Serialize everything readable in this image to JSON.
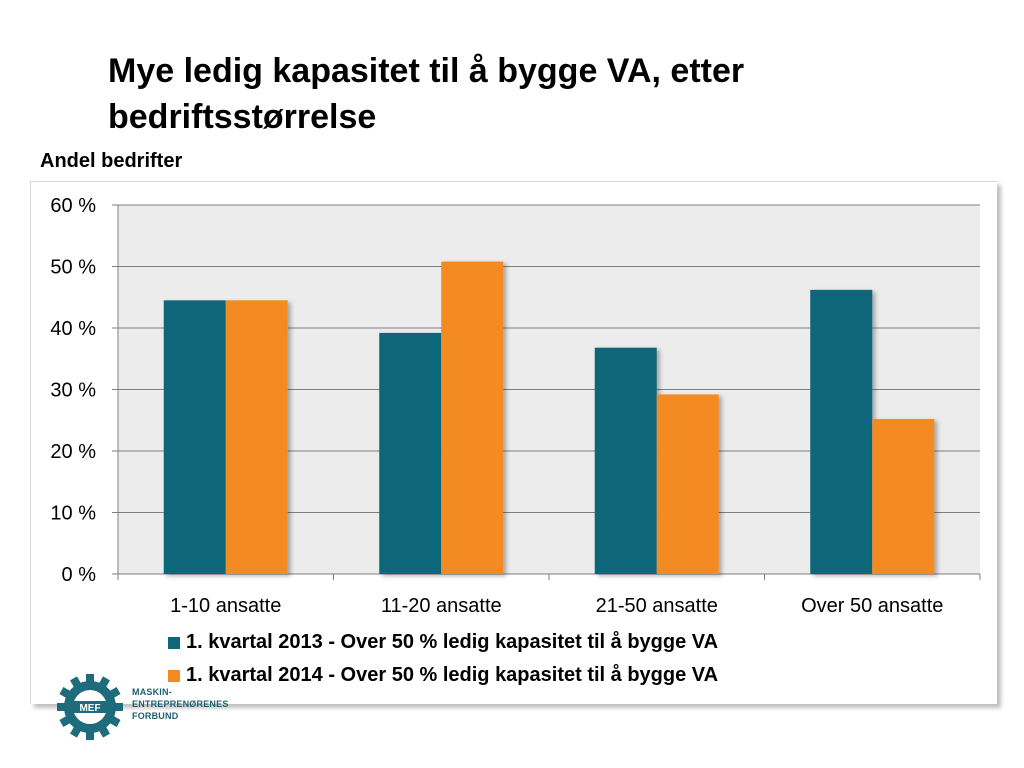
{
  "header": {
    "title": "Mye ledig kapasitet til å bygge VA, etter bedriftsstørrelse",
    "subtitle": "Andel bedrifter"
  },
  "colors": {
    "series_2013": "#0e6679",
    "series_2014": "#f48b20",
    "plot_background": "#ececec",
    "gridline": "#7f7f7f"
  },
  "chart_data": {
    "type": "bar",
    "ylabel": "Andel bedrifter",
    "categories": [
      "1-10 ansatte",
      "11-20 ansatte",
      "21-50 ansatte",
      "Over 50 ansatte"
    ],
    "series": [
      {
        "name": "1. kvartal 2013 - Over 50 % ledig kapasitet til å bygge VA",
        "values": [
          44.5,
          39.2,
          36.8,
          46.2
        ]
      },
      {
        "name": "1. kvartal 2014 - Over 50 % ledig kapasitet til å bygge VA",
        "values": [
          44.5,
          50.8,
          29.2,
          25.2
        ]
      }
    ],
    "yticks": [
      "0 %",
      "10 %",
      "20 %",
      "30 %",
      "40 %",
      "50 %",
      "60 %"
    ],
    "ylim": [
      0,
      60
    ],
    "grid": true,
    "legend": "bottom"
  },
  "logo": {
    "emblem_text": "MEF",
    "line1": "MASKIN-",
    "line2": "ENTREPRENØRENES",
    "line3": "FORBUND"
  }
}
